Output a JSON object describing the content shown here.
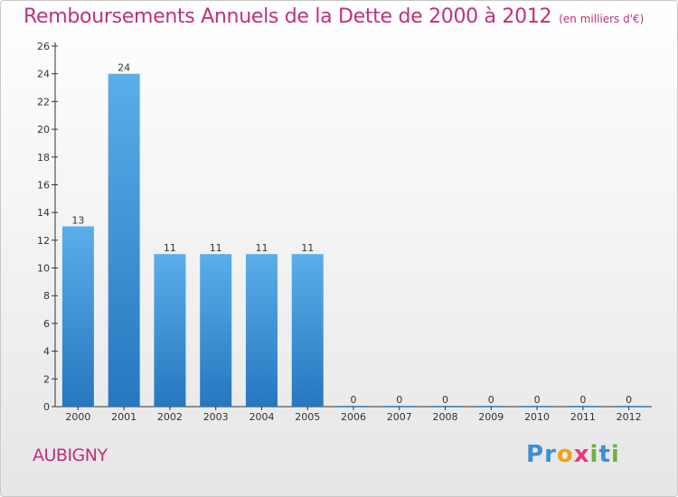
{
  "chart_data": {
    "type": "bar",
    "title": "Remboursements Annuels de la Dette de 2000 à 2012",
    "subtitle": "(en milliers d'€)",
    "categories": [
      "2000",
      "2001",
      "2002",
      "2003",
      "2004",
      "2005",
      "2006",
      "2007",
      "2008",
      "2009",
      "2010",
      "2011",
      "2012"
    ],
    "values": [
      13,
      24,
      11,
      11,
      11,
      11,
      0,
      0,
      0,
      0,
      0,
      0,
      0
    ],
    "data_labels": [
      "13",
      "24",
      "11",
      "11",
      "11",
      "11",
      "0",
      "0",
      "0",
      "0",
      "0",
      "0",
      "0"
    ],
    "ylim": [
      0,
      26
    ],
    "yticks": [
      0,
      2,
      4,
      6,
      8,
      10,
      12,
      14,
      16,
      18,
      20,
      22,
      24,
      26
    ],
    "grid": false,
    "bar_color": "#3a8fd8"
  },
  "footer": {
    "commune": "AUBIGNY",
    "brand": "Proxiti",
    "brand_letters": [
      {
        "ch": "P",
        "color": "#3b8fd6"
      },
      {
        "ch": "r",
        "color": "#3b8fd6"
      },
      {
        "ch": "o",
        "color": "#f0a21b"
      },
      {
        "ch": "x",
        "color": "#e83a7c"
      },
      {
        "ch": "i",
        "color": "#6cb33e"
      },
      {
        "ch": "t",
        "color": "#3b8fd6"
      },
      {
        "ch": "i",
        "color": "#6cb33e"
      }
    ]
  },
  "colors": {
    "title": "#c0307a",
    "axis": "#333333",
    "label": "#333333"
  }
}
